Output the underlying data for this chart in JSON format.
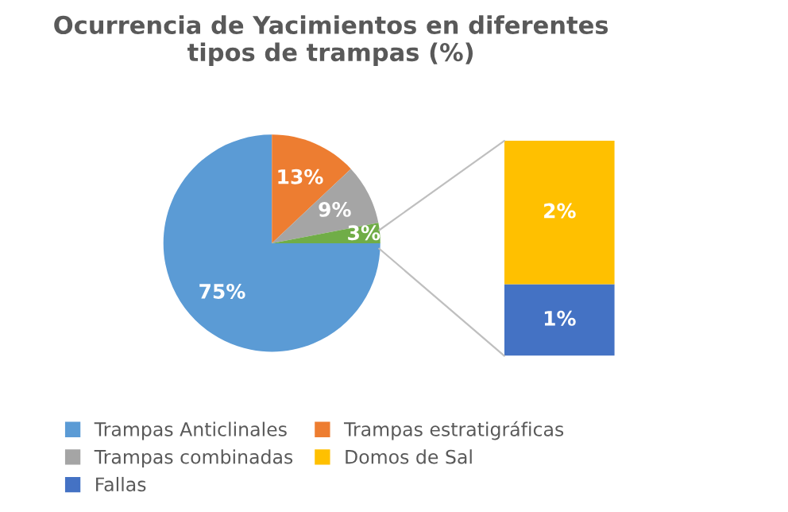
{
  "chart_data": [
    {
      "type": "pie",
      "title": "Ocurrencia de Yacimientos en diferentes\ntipos de trampas (%)",
      "categories": [
        "Trampas Anticlinales",
        "Trampas estratigráficas",
        "Trampas combinadas",
        null
      ],
      "values": [
        75,
        13,
        9,
        3
      ],
      "colors": [
        "#5b9bd5",
        "#ed7d31",
        "#a5a5a5",
        "#70ad47"
      ],
      "value_labels": [
        "75%",
        "13%",
        "9%",
        "3%"
      ],
      "legend": "bottom"
    },
    {
      "type": "bar",
      "stacked": true,
      "legend": "bottom",
      "categories": [
        null
      ],
      "series": [
        {
          "name": "Fallas",
          "color": "#4472c4",
          "values": [
            1
          ],
          "value_labels": [
            "1%"
          ]
        },
        {
          "name": "Domos de Sal",
          "color": "#ffc000",
          "values": [
            2
          ],
          "value_labels": [
            "2%"
          ]
        }
      ]
    }
  ]
}
